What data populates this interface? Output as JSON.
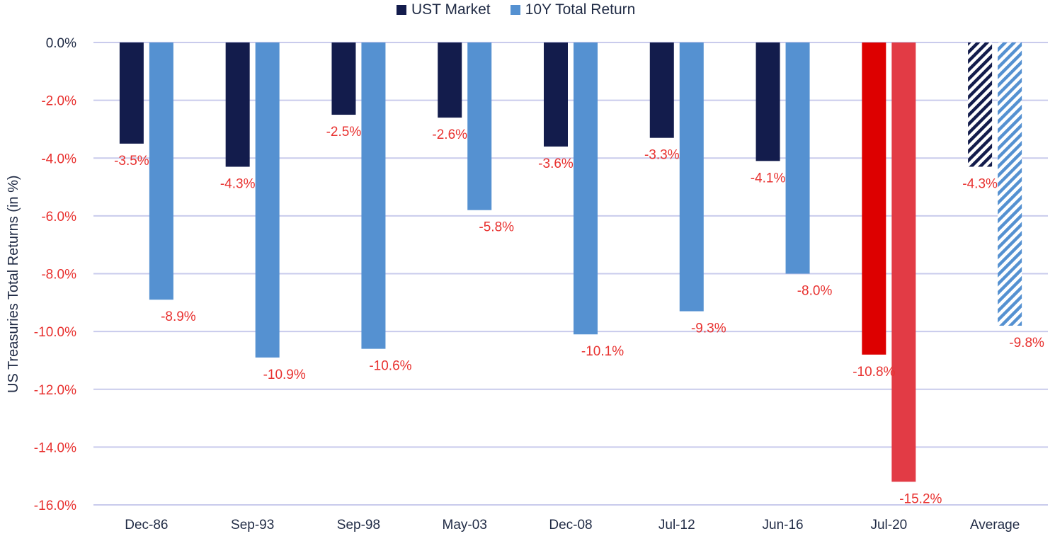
{
  "chart_data": {
    "type": "bar",
    "title": "",
    "xlabel": "",
    "ylabel": "US Treasuries Total Returns (in %)",
    "ylim": [
      -16,
      0
    ],
    "yticks": [
      0,
      -2,
      -4,
      -6,
      -8,
      -10,
      -12,
      -14,
      -16
    ],
    "ytick_labels": [
      "0.0%",
      "-2.0%",
      "-4.0%",
      "-6.0%",
      "-8.0%",
      "-10.0%",
      "-12.0%",
      "-14.0%",
      "-16.0%"
    ],
    "grid": true,
    "legend_position": "top-center",
    "categories": [
      "Dec-86",
      "Sep-93",
      "Sep-98",
      "May-03",
      "Dec-08",
      "Jul-12",
      "Jun-16",
      "Jul-20",
      "Average"
    ],
    "series": [
      {
        "name": "UST Market",
        "color": "#131c4c",
        "values": [
          -3.5,
          -4.3,
          -2.5,
          -2.6,
          -3.6,
          -3.3,
          -4.1,
          -10.8,
          -4.3
        ],
        "labels": [
          "-3.5%",
          "-4.3%",
          "-2.5%",
          "-2.6%",
          "-3.6%",
          "-3.3%",
          "-4.1%",
          "-10.8%",
          "-4.3%"
        ]
      },
      {
        "name": "10Y Total Return",
        "color": "#5591d1",
        "values": [
          -8.9,
          -10.9,
          -10.6,
          -5.8,
          -10.1,
          -9.3,
          -8.0,
          -15.2,
          -9.8
        ],
        "labels": [
          "-8.9%",
          "-10.9%",
          "-10.6%",
          "-5.8%",
          "-10.1%",
          "-9.3%",
          "-8.0%",
          "-15.2%",
          "-9.8%"
        ]
      }
    ],
    "highlight": {
      "category": "Jul-20",
      "colors": [
        "#dd0000",
        "#e23b45"
      ]
    },
    "hatched_category": "Average",
    "label_color": "#e8312f",
    "axis_text_color": "#1f2a44",
    "ytick_color": "#e8312f",
    "grid_color": "#c9cbec"
  }
}
